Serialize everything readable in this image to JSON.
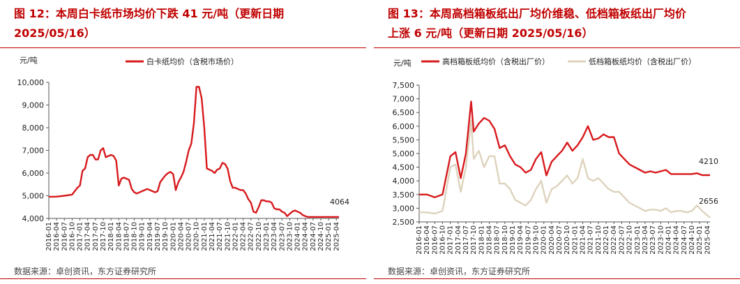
{
  "figures": [
    {
      "title_line1": "图 12：本周白卡纸市场均价下跌 41 元/吨（更新日期",
      "title_line2": "2025/05/16）",
      "source": "数据来源：卓创资讯，东方证券研究所"
    },
    {
      "title_line1": "图 13：本周高档箱板纸出厂均价维稳、低档箱板纸出厂均价",
      "title_line2": "上涨 6 元/吨（更新日期 2025/05/16）",
      "source": "数据来源：卓创资讯，东方证券研究所"
    }
  ],
  "chart_data": [
    {
      "type": "line",
      "ylabel": "元/吨",
      "ylim": [
        4000,
        10000
      ],
      "yticks": [
        "4,000",
        "5,000",
        "6,000",
        "7,000",
        "8,000",
        "9,000",
        "10,000"
      ],
      "xticks": [
        "2016-01",
        "2016-04",
        "2016-07",
        "2016-10",
        "2017-01",
        "2017-04",
        "2017-07",
        "2017-10",
        "2018-01",
        "2018-04",
        "2018-07",
        "2018-10",
        "2019-01",
        "2019-04",
        "2019-07",
        "2019-10",
        "2020-01",
        "2020-04",
        "2020-07",
        "2020-10",
        "2021-01",
        "2021-04",
        "2021-07",
        "2021-10",
        "2022-01",
        "2022-04",
        "2022-07",
        "2022-10",
        "2023-01",
        "2023-04",
        "2023-07",
        "2023-10",
        "2024-01",
        "2024-04",
        "2024-07",
        "2024-10",
        "2025-01",
        "2025-04"
      ],
      "legend_position": "top",
      "end_label": "4064",
      "series": [
        {
          "name": "白卡纸均价（含税市场价）",
          "color": "#d7191c",
          "x": [
            "2016-01",
            "2016-04",
            "2016-07",
            "2016-10",
            "2016-12",
            "2017-01",
            "2017-02",
            "2017-03",
            "2017-04",
            "2017-05",
            "2017-06",
            "2017-07",
            "2017-08",
            "2017-09",
            "2017-10",
            "2017-11",
            "2017-12",
            "2018-01",
            "2018-02",
            "2018-03",
            "2018-04",
            "2018-05",
            "2018-06",
            "2018-07",
            "2018-08",
            "2018-09",
            "2018-10",
            "2018-11",
            "2018-12",
            "2019-01",
            "2019-02",
            "2019-03",
            "2019-04",
            "2019-05",
            "2019-06",
            "2019-07",
            "2019-08",
            "2019-09",
            "2019-10",
            "2019-11",
            "2019-12",
            "2020-01",
            "2020-02",
            "2020-03",
            "2020-04",
            "2020-05",
            "2020-06",
            "2020-07",
            "2020-08",
            "2020-09",
            "2020-10",
            "2020-11",
            "2020-12",
            "2021-01",
            "2021-02",
            "2021-03",
            "2021-04",
            "2021-05",
            "2021-06",
            "2021-07",
            "2021-08",
            "2021-09",
            "2021-10",
            "2021-11",
            "2021-12",
            "2022-01",
            "2022-02",
            "2022-03",
            "2022-04",
            "2022-05",
            "2022-06",
            "2022-07",
            "2022-08",
            "2022-09",
            "2022-10",
            "2022-11",
            "2022-12",
            "2023-01",
            "2023-02",
            "2023-03",
            "2023-04",
            "2023-05",
            "2023-06",
            "2023-07",
            "2023-08",
            "2023-09",
            "2023-10",
            "2023-11",
            "2023-12",
            "2024-01",
            "2024-02",
            "2024-03",
            "2024-04",
            "2024-05",
            "2024-06",
            "2024-07",
            "2024-08",
            "2024-09",
            "2024-10",
            "2024-11",
            "2024-12",
            "2025-01",
            "2025-02",
            "2025-03",
            "2025-04",
            "2025-05"
          ],
          "values": [
            4950,
            4960,
            5000,
            5050,
            5350,
            5450,
            6100,
            6200,
            6700,
            6800,
            6800,
            6600,
            6600,
            7000,
            7100,
            6700,
            6750,
            6800,
            6750,
            6550,
            5450,
            5750,
            5800,
            5750,
            5700,
            5300,
            5150,
            5100,
            5150,
            5200,
            5250,
            5300,
            5250,
            5200,
            5150,
            5200,
            5600,
            5750,
            5900,
            6000,
            6050,
            5950,
            5250,
            5600,
            5800,
            6050,
            6500,
            7000,
            7300,
            8200,
            9800,
            9800,
            9300,
            8000,
            6200,
            6150,
            6100,
            6000,
            6150,
            6200,
            6450,
            6400,
            6200,
            5650,
            5350,
            5350,
            5300,
            5250,
            5250,
            5100,
            4850,
            4700,
            4300,
            4250,
            4500,
            4800,
            4800,
            4750,
            4750,
            4700,
            4450,
            4400,
            4400,
            4300,
            4250,
            4100,
            4200,
            4300,
            4350,
            4300,
            4250,
            4150,
            4100,
            4064,
            4064,
            4064,
            4064,
            4064,
            4064,
            4064,
            4064,
            4064,
            4064,
            4064,
            4064,
            4064
          ]
        }
      ]
    },
    {
      "type": "line",
      "ylabel": "元/吨",
      "ylim": [
        2500,
        7500
      ],
      "yticks": [
        "2,500",
        "3,000",
        "3,500",
        "4,000",
        "4,500",
        "5,000",
        "5,500",
        "6,000",
        "6,500",
        "7,000",
        "7,500"
      ],
      "xticks": [
        "2016-01",
        "2016-04",
        "2016-07",
        "2016-10",
        "2017-01",
        "2017-04",
        "2017-07",
        "2017-10",
        "2018-01",
        "2018-04",
        "2018-07",
        "2018-10",
        "2019-01",
        "2019-04",
        "2019-07",
        "2019-10",
        "2020-01",
        "2020-04",
        "2020-07",
        "2020-10",
        "2021-01",
        "2021-04",
        "2021-07",
        "2021-10",
        "2022-01",
        "2022-04",
        "2022-07",
        "2022-10",
        "2023-01",
        "2023-04",
        "2023-07",
        "2023-10",
        "2024-01",
        "2024-04",
        "2024-07",
        "2024-10",
        "2025-01",
        "2025-04"
      ],
      "legend_position": "top",
      "end_labels": [
        "4210",
        "2656"
      ],
      "series": [
        {
          "name": "高档箱板纸均价（含税出厂价）",
          "color": "#d7191c",
          "x": [
            "2016-01",
            "2016-04",
            "2016-07",
            "2016-10",
            "2017-01",
            "2017-03",
            "2017-05",
            "2017-07",
            "2017-09",
            "2017-10",
            "2017-12",
            "2018-02",
            "2018-04",
            "2018-06",
            "2018-08",
            "2018-10",
            "2018-12",
            "2019-02",
            "2019-04",
            "2019-06",
            "2019-08",
            "2019-10",
            "2019-12",
            "2020-02",
            "2020-04",
            "2020-06",
            "2020-08",
            "2020-10",
            "2020-12",
            "2021-02",
            "2021-04",
            "2021-06",
            "2021-08",
            "2021-10",
            "2021-12",
            "2022-02",
            "2022-04",
            "2022-06",
            "2022-08",
            "2022-10",
            "2022-12",
            "2023-02",
            "2023-04",
            "2023-06",
            "2023-08",
            "2023-10",
            "2023-12",
            "2024-02",
            "2024-04",
            "2024-06",
            "2024-08",
            "2024-10",
            "2024-12",
            "2025-02",
            "2025-05"
          ],
          "values": [
            3500,
            3500,
            3400,
            3500,
            4900,
            5050,
            4100,
            5000,
            6900,
            5800,
            6100,
            6300,
            6200,
            5900,
            5200,
            5300,
            4900,
            4600,
            4500,
            4300,
            4400,
            4800,
            5050,
            4200,
            4700,
            4900,
            5100,
            5400,
            5100,
            5300,
            5600,
            6000,
            5500,
            5550,
            5700,
            5600,
            5600,
            5000,
            4800,
            4600,
            4500,
            4400,
            4300,
            4350,
            4300,
            4350,
            4400,
            4250,
            4250,
            4250,
            4250,
            4250,
            4280,
            4210,
            4210
          ]
        },
        {
          "name": "低档箱板纸均价（含税出厂价）",
          "color": "#ddd3bd",
          "x": [
            "2016-01",
            "2016-04",
            "2016-07",
            "2016-10",
            "2017-01",
            "2017-03",
            "2017-05",
            "2017-07",
            "2017-09",
            "2017-10",
            "2017-12",
            "2018-02",
            "2018-04",
            "2018-06",
            "2018-08",
            "2018-10",
            "2018-12",
            "2019-02",
            "2019-04",
            "2019-06",
            "2019-08",
            "2019-10",
            "2019-12",
            "2020-02",
            "2020-04",
            "2020-06",
            "2020-08",
            "2020-10",
            "2020-12",
            "2021-02",
            "2021-04",
            "2021-06",
            "2021-08",
            "2021-10",
            "2021-12",
            "2022-02",
            "2022-04",
            "2022-06",
            "2022-08",
            "2022-10",
            "2022-12",
            "2023-02",
            "2023-04",
            "2023-06",
            "2023-08",
            "2023-10",
            "2023-12",
            "2024-02",
            "2024-04",
            "2024-06",
            "2024-08",
            "2024-10",
            "2024-12",
            "2025-02",
            "2025-05"
          ],
          "values": [
            2850,
            2850,
            2800,
            2900,
            4500,
            4600,
            3600,
            4500,
            6200,
            4800,
            5100,
            4500,
            4900,
            4900,
            3900,
            3900,
            3700,
            3300,
            3200,
            3100,
            3300,
            3700,
            4000,
            3200,
            3700,
            3800,
            4000,
            4200,
            3900,
            4100,
            4800,
            4100,
            4000,
            4100,
            3900,
            3700,
            3600,
            3600,
            3400,
            3200,
            3100,
            3000,
            2900,
            2950,
            2950,
            2900,
            3000,
            2850,
            2900,
            2900,
            2850,
            2900,
            3100,
            2900,
            2656
          ]
        }
      ]
    }
  ]
}
